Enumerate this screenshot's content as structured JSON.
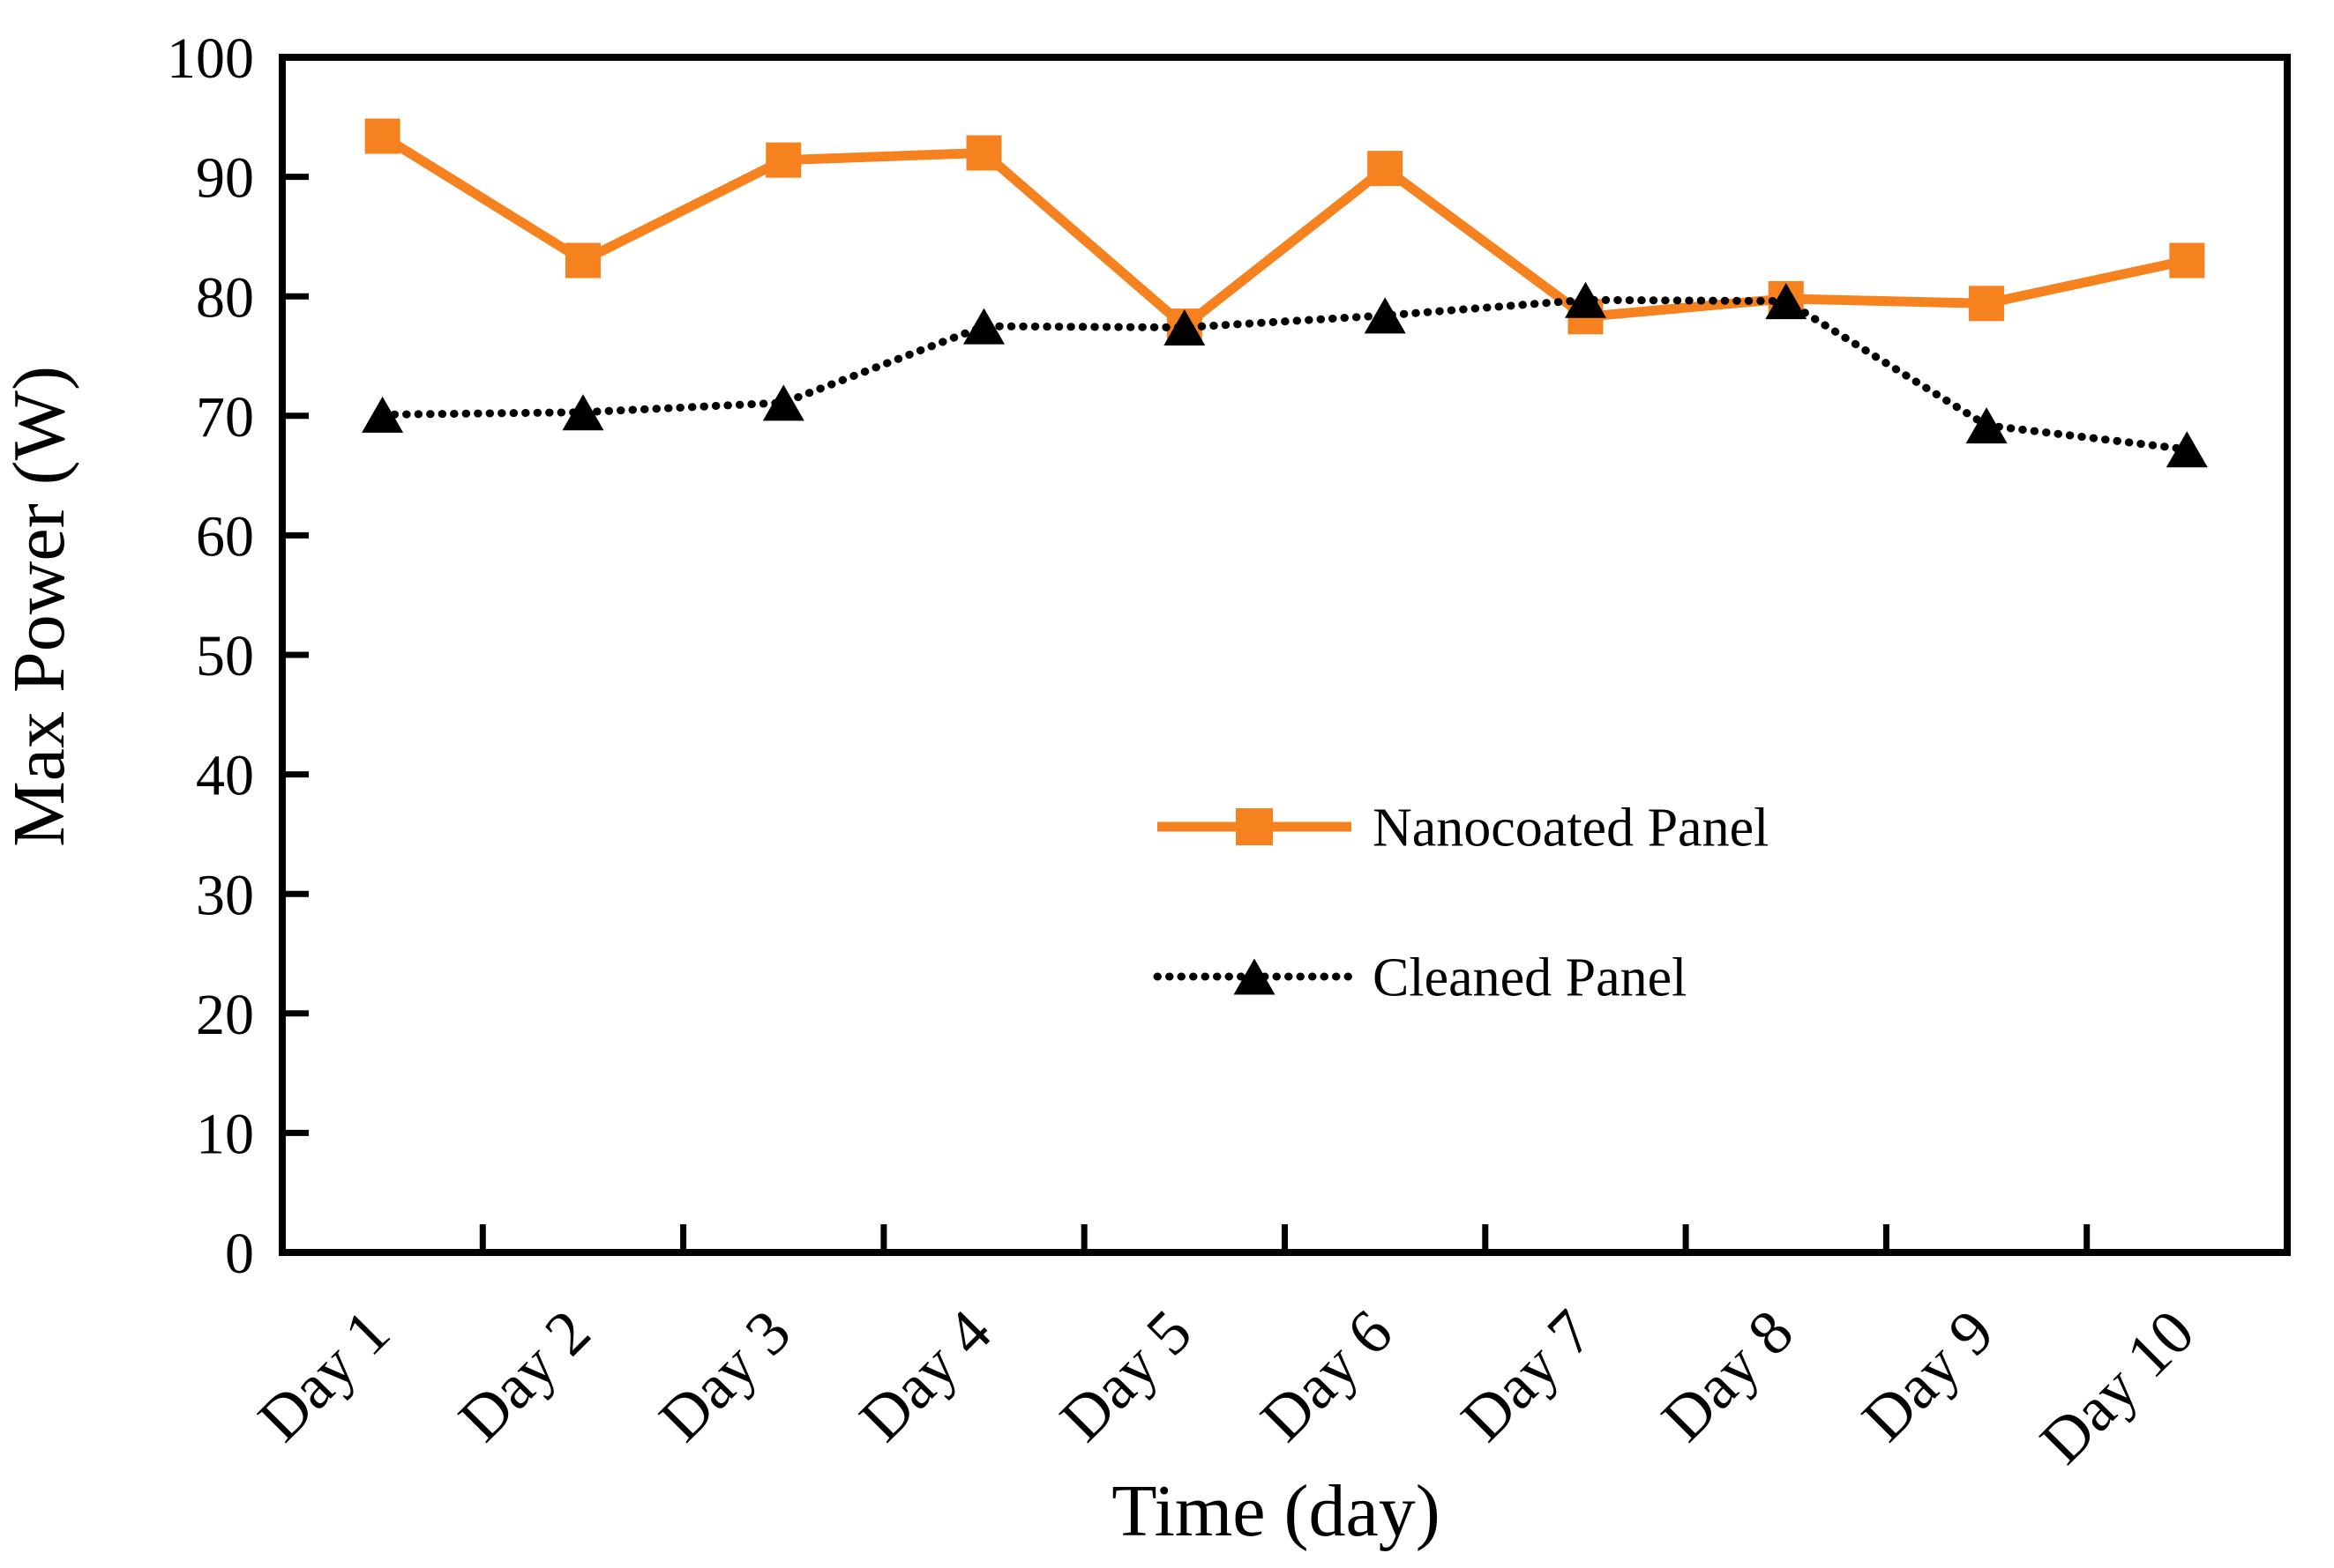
{
  "figure": {
    "background": "#ffffff",
    "frame_color": "#000000"
  },
  "chart_data": {
    "type": "line",
    "title": "",
    "xlabel": "Time (day)",
    "ylabel": "Max Power (W)",
    "ylim": [
      0,
      100
    ],
    "y_ticks": [
      0,
      10,
      20,
      30,
      40,
      50,
      60,
      70,
      80,
      90,
      100
    ],
    "y_tick_labels": [
      "0",
      "10",
      "20",
      "30",
      "40",
      "50",
      "60",
      "70",
      "80",
      "90",
      "100"
    ],
    "grid": false,
    "tick_direction": "in",
    "x_tick_style": "between-categories",
    "x_label_rotation_deg": -45,
    "legend_position": "inside-center-right",
    "categories": [
      "Day 1",
      "Day 2",
      "Day 3",
      "Day 4",
      "Day 5",
      "Day 6",
      "Day 7",
      "Day 8",
      "Day 9",
      "Day 10"
    ],
    "series": [
      {
        "name": "Nanocoated Panel",
        "color": "#F5821F",
        "marker": "square",
        "line": "solid",
        "values": [
          93.4,
          83.0,
          91.4,
          92.0,
          77.5,
          90.7,
          78.3,
          79.8,
          79.4,
          83.0
        ]
      },
      {
        "name": "Cleaned Panel",
        "color": "#000000",
        "marker": "triangle",
        "line": "dotted",
        "values": [
          70.1,
          70.3,
          71.1,
          77.5,
          77.4,
          78.4,
          79.7,
          79.6,
          69.2,
          67.2
        ]
      }
    ]
  }
}
